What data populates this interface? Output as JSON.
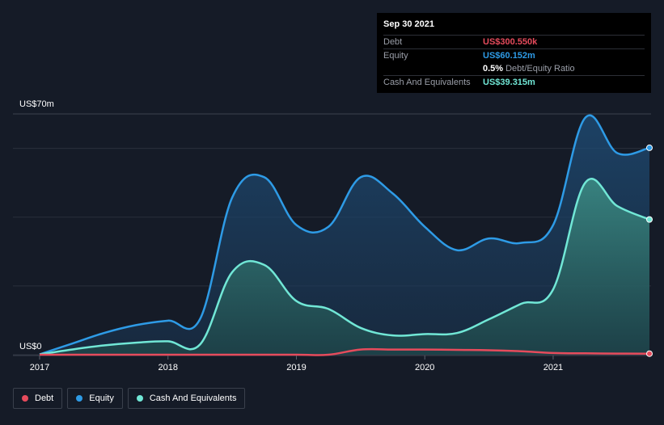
{
  "chart_data": {
    "type": "area",
    "y_top_label": "US$70m",
    "y_bottom_label": "US$0",
    "ylim": [
      0,
      70
    ],
    "xlim": [
      2017.0,
      2021.75
    ],
    "x_ticks": [
      {
        "value": 2017,
        "label": "2017"
      },
      {
        "value": 2018,
        "label": "2018"
      },
      {
        "value": 2019,
        "label": "2019"
      },
      {
        "value": 2020,
        "label": "2020"
      },
      {
        "value": 2021,
        "label": "2021"
      }
    ],
    "series": [
      {
        "name": "Equity",
        "color": "#2e9be6",
        "points": [
          [
            2017.0,
            0.1
          ],
          [
            2017.25,
            3.2
          ],
          [
            2017.5,
            6.3
          ],
          [
            2017.75,
            8.6
          ],
          [
            2018.0,
            9.9
          ],
          [
            2018.25,
            10.4
          ],
          [
            2018.5,
            45.7
          ],
          [
            2018.75,
            51.6
          ],
          [
            2019.0,
            37.7
          ],
          [
            2019.25,
            37.2
          ],
          [
            2019.5,
            51.6
          ],
          [
            2019.75,
            46.9
          ],
          [
            2020.0,
            37.2
          ],
          [
            2020.25,
            30.4
          ],
          [
            2020.5,
            33.8
          ],
          [
            2020.75,
            32.5
          ],
          [
            2021.0,
            37.7
          ],
          [
            2021.25,
            68.9
          ],
          [
            2021.5,
            58.6
          ],
          [
            2021.75,
            60.152
          ]
        ]
      },
      {
        "name": "Cash And Equivalents",
        "color": "#71e7d6",
        "points": [
          [
            2017.0,
            0.1
          ],
          [
            2017.25,
            1.5
          ],
          [
            2017.5,
            2.7
          ],
          [
            2017.75,
            3.5
          ],
          [
            2018.0,
            3.9
          ],
          [
            2018.25,
            3.0
          ],
          [
            2018.5,
            24.0
          ],
          [
            2018.75,
            26.1
          ],
          [
            2019.0,
            15.6
          ],
          [
            2019.25,
            13.3
          ],
          [
            2019.5,
            7.8
          ],
          [
            2019.75,
            5.6
          ],
          [
            2020.0,
            6.0
          ],
          [
            2020.25,
            6.3
          ],
          [
            2020.5,
            10.3
          ],
          [
            2020.75,
            14.8
          ],
          [
            2021.0,
            19.0
          ],
          [
            2021.25,
            50.0
          ],
          [
            2021.5,
            43.2
          ],
          [
            2021.75,
            39.315
          ]
        ]
      },
      {
        "name": "Debt",
        "color": "#e64b5c",
        "points": [
          [
            2017.0,
            0
          ],
          [
            2017.5,
            0
          ],
          [
            2018.0,
            0
          ],
          [
            2018.5,
            0
          ],
          [
            2019.0,
            0
          ],
          [
            2019.25,
            0
          ],
          [
            2019.5,
            1.5
          ],
          [
            2019.75,
            1.5
          ],
          [
            2020.0,
            1.5
          ],
          [
            2020.25,
            1.4
          ],
          [
            2020.5,
            1.3
          ],
          [
            2020.75,
            1.0
          ],
          [
            2021.0,
            0.5
          ],
          [
            2021.25,
            0.4
          ],
          [
            2021.5,
            0.33
          ],
          [
            2021.75,
            0.30055
          ]
        ]
      }
    ]
  },
  "tooltip": {
    "date": "Sep 30 2021",
    "debt_label": "Debt",
    "debt_value": "US$300.550k",
    "equity_label": "Equity",
    "equity_value": "US$60.152m",
    "ratio_value": "0.5%",
    "ratio_label": "Debt/Equity Ratio",
    "cash_label": "Cash And Equivalents",
    "cash_value": "US$39.315m"
  },
  "legend": [
    {
      "label": "Debt",
      "color": "#e64b5c"
    },
    {
      "label": "Equity",
      "color": "#2e9be6"
    },
    {
      "label": "Cash And Equivalents",
      "color": "#71e7d6"
    }
  ]
}
